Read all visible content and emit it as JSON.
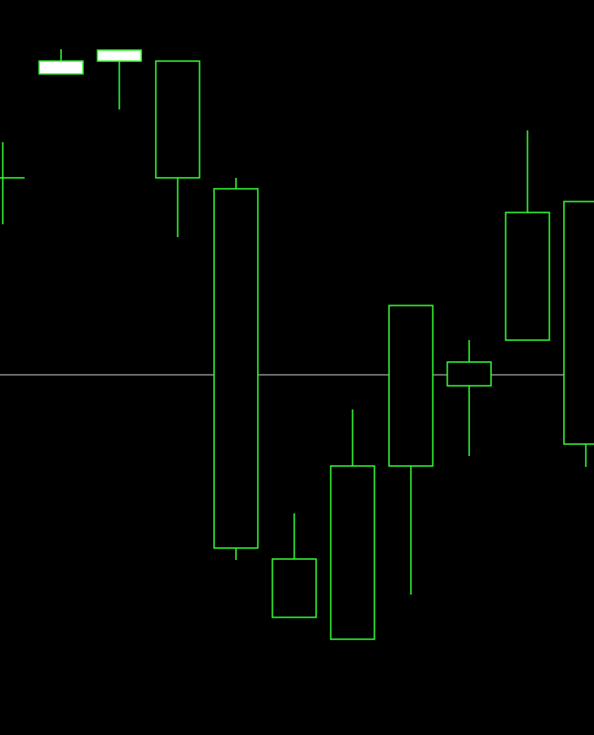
{
  "chart_data": {
    "type": "candlestick",
    "ylim": [
      0,
      806
    ],
    "reference_line": {
      "value": 395,
      "color": "#8c8c8c"
    },
    "colors": {
      "background": "#000000",
      "outline": "#33ff33",
      "bullish_fill": "#ffffff",
      "bearish_fill": "#000000"
    },
    "series": [
      {
        "open": 611,
        "close": 611,
        "high": 650,
        "low": 560
      },
      {
        "open": 725,
        "close": 739,
        "high": 752,
        "low": 725
      },
      {
        "open": 739,
        "close": 751,
        "high": 751,
        "low": 686
      },
      {
        "open": 739,
        "close": 611,
        "high": 739,
        "low": 546
      },
      {
        "open": 599,
        "close": 205,
        "high": 611,
        "low": 192
      },
      {
        "open": 193,
        "close": 129,
        "high": 243,
        "low": 129
      },
      {
        "open": 295,
        "close": 105,
        "high": 357,
        "low": 105
      },
      {
        "open": 471,
        "close": 295,
        "high": 471,
        "low": 154
      },
      {
        "open": 409,
        "close": 383,
        "high": 433,
        "low": 306
      },
      {
        "open": 573,
        "close": 433,
        "high": 663,
        "low": 433
      },
      {
        "open": 585,
        "close": 319,
        "high": 585,
        "low": 294
      }
    ]
  }
}
